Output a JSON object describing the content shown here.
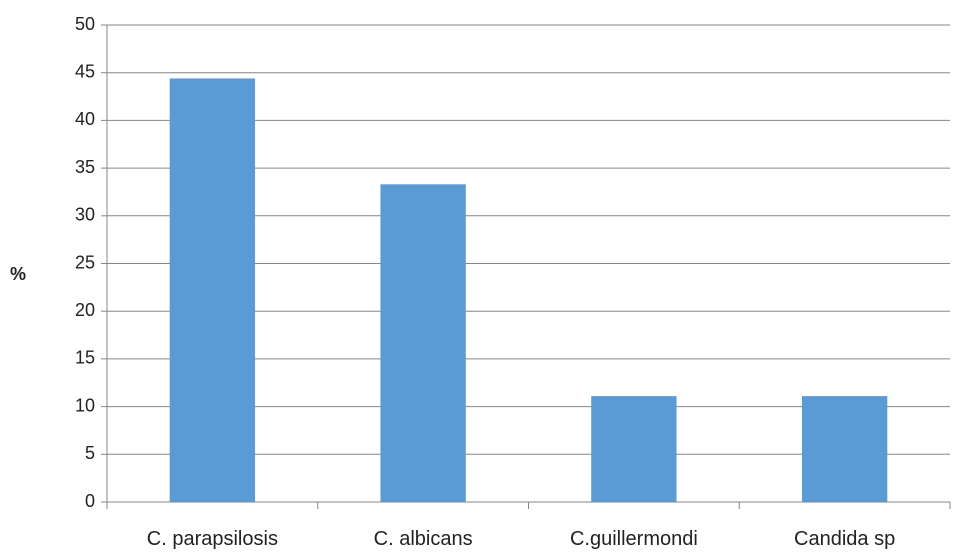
{
  "chart_data": {
    "type": "bar",
    "categories": [
      "C. parapsilosis",
      "C. albicans",
      "C.guillermondi",
      "Candida sp"
    ],
    "values": [
      44.4,
      33.3,
      11.1,
      11.1
    ],
    "title": "",
    "xlabel": "",
    "ylabel": "%",
    "ylim": [
      0,
      50
    ],
    "yticks": [
      "0",
      "5",
      "10",
      "15",
      "20",
      "25",
      "30",
      "35",
      "40",
      "45",
      "50"
    ],
    "grid": true,
    "legend": "none",
    "bar_color": "#5b9bd5",
    "gridline_color": "#868686"
  }
}
